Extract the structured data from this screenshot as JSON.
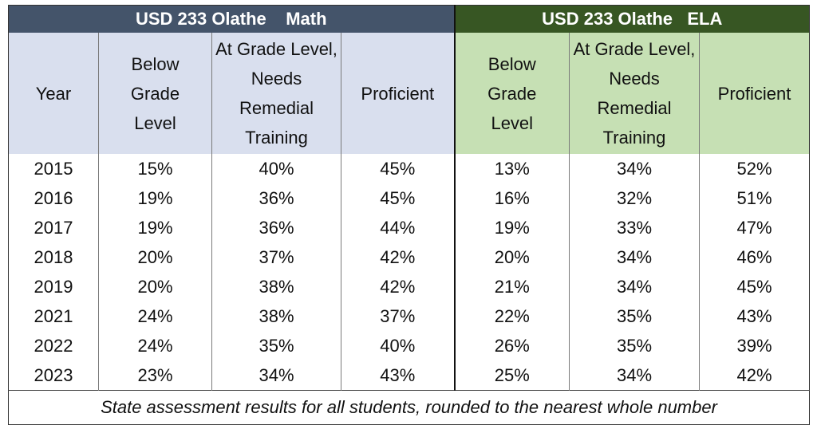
{
  "header": {
    "math_title": "USD 233 Olathe    Math",
    "ela_title": "USD 233 Olathe   ELA"
  },
  "columns": {
    "year": "Year",
    "below": "Below Grade Level",
    "at_grade": "At Grade Level, Needs Remedial Training",
    "proficient": "Proficient"
  },
  "rows": [
    {
      "year": "2015",
      "math_below": "15%",
      "math_at": "40%",
      "math_prof": "45%",
      "ela_below": "13%",
      "ela_at": "34%",
      "ela_prof": "52%"
    },
    {
      "year": "2016",
      "math_below": "19%",
      "math_at": "36%",
      "math_prof": "45%",
      "ela_below": "16%",
      "ela_at": "32%",
      "ela_prof": "51%"
    },
    {
      "year": "2017",
      "math_below": "19%",
      "math_at": "36%",
      "math_prof": "44%",
      "ela_below": "19%",
      "ela_at": "33%",
      "ela_prof": "47%"
    },
    {
      "year": "2018",
      "math_below": "20%",
      "math_at": "37%",
      "math_prof": "42%",
      "ela_below": "20%",
      "ela_at": "34%",
      "ela_prof": "46%"
    },
    {
      "year": "2019",
      "math_below": "20%",
      "math_at": "38%",
      "math_prof": "42%",
      "ela_below": "21%",
      "ela_at": "34%",
      "ela_prof": "45%"
    },
    {
      "year": "2021",
      "math_below": "24%",
      "math_at": "38%",
      "math_prof": "37%",
      "ela_below": "22%",
      "ela_at": "35%",
      "ela_prof": "43%"
    },
    {
      "year": "2022",
      "math_below": "24%",
      "math_at": "35%",
      "math_prof": "40%",
      "ela_below": "26%",
      "ela_at": "35%",
      "ela_prof": "39%"
    },
    {
      "year": "2023",
      "math_below": "23%",
      "math_at": "34%",
      "math_prof": "43%",
      "ela_below": "25%",
      "ela_at": "34%",
      "ela_prof": "42%"
    }
  ],
  "footnote": "State assessment results for all students, rounded to the nearest whole number",
  "colors": {
    "math_band": "#44546a",
    "ela_band": "#375623",
    "math_header_bg": "#d9dfee",
    "ela_header_bg": "#c6e0b4"
  }
}
